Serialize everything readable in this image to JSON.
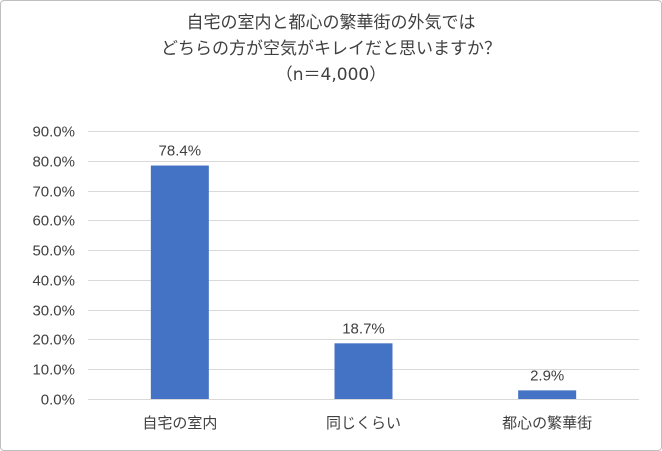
{
  "chart_data": {
    "type": "bar",
    "title_lines": [
      "自宅の室内と都心の繁華街の外気では",
      "どちらの方が空気がキレイだと思いますか？",
      "（n＝4,000）"
    ],
    "categories": [
      "自宅の室内",
      "同じくらい",
      "都心の繁華街"
    ],
    "values": [
      78.4,
      18.7,
      2.9
    ],
    "value_labels": [
      "78.4%",
      "18.7%",
      "2.9%"
    ],
    "y_ticks": [
      "0.0%",
      "10.0%",
      "20.0%",
      "30.0%",
      "40.0%",
      "50.0%",
      "60.0%",
      "70.0%",
      "80.0%",
      "90.0%"
    ],
    "ylim": [
      0,
      90
    ],
    "grid": true,
    "bar_color": "#4472c4",
    "grid_color": "#d9d9d9"
  }
}
